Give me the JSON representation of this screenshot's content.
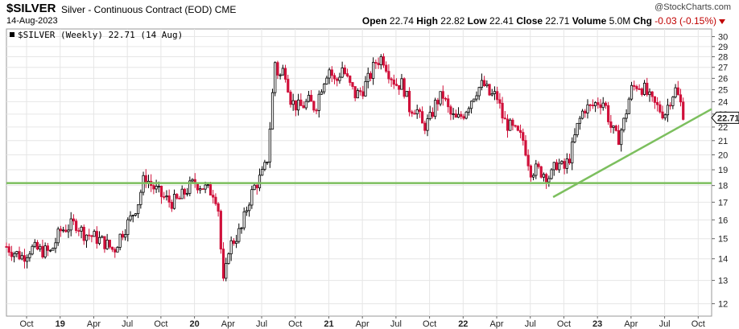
{
  "header": {
    "symbol": "$SILVER",
    "description": "Silver - Continuous Contract (EOD)",
    "exchange": "CME",
    "date": "14-Aug-2023",
    "credit": "@StockCharts.com"
  },
  "ohlc": {
    "open_label": "Open",
    "open": "22.74",
    "high_label": "High",
    "high": "22.82",
    "low_label": "Low",
    "low": "22.41",
    "close_label": "Close",
    "close": "22.71",
    "volume_label": "Volume",
    "volume": "5.0M",
    "chg_label": "Chg",
    "chg": "-0.03 (-0.15%)"
  },
  "legend": {
    "text": "$SILVER (Weekly) 22.71 (14 Aug)"
  },
  "colors": {
    "up": "#000000",
    "down": "#d0103a",
    "trendline": "#7cbf5e",
    "grid": "#e6e6e6"
  },
  "chart_data": {
    "type": "candlestick",
    "series_name": "$SILVER (Weekly)",
    "yscale": "log",
    "ylim": [
      11.5,
      30.8
    ],
    "y_ticks": [
      12,
      13,
      14,
      15,
      16,
      17,
      18,
      19,
      20,
      21,
      22,
      23,
      24,
      25,
      26,
      27,
      28,
      29,
      30
    ],
    "x_ticks": [
      {
        "label": "Oct",
        "t": 2018.75,
        "bold": false
      },
      {
        "label": "19",
        "t": 2019.0,
        "bold": true
      },
      {
        "label": "Apr",
        "t": 2019.25,
        "bold": false
      },
      {
        "label": "Jul",
        "t": 2019.5,
        "bold": false
      },
      {
        "label": "Oct",
        "t": 2019.75,
        "bold": false
      },
      {
        "label": "20",
        "t": 2020.0,
        "bold": true
      },
      {
        "label": "Apr",
        "t": 2020.25,
        "bold": false
      },
      {
        "label": "Jul",
        "t": 2020.5,
        "bold": false
      },
      {
        "label": "Oct",
        "t": 2020.75,
        "bold": false
      },
      {
        "label": "21",
        "t": 2021.0,
        "bold": true
      },
      {
        "label": "Apr",
        "t": 2021.25,
        "bold": false
      },
      {
        "label": "Jul",
        "t": 2021.5,
        "bold": false
      },
      {
        "label": "Oct",
        "t": 2021.75,
        "bold": false
      },
      {
        "label": "22",
        "t": 2022.0,
        "bold": true
      },
      {
        "label": "Apr",
        "t": 2022.25,
        "bold": false
      },
      {
        "label": "Jul",
        "t": 2022.5,
        "bold": false
      },
      {
        "label": "Oct",
        "t": 2022.75,
        "bold": false
      },
      {
        "label": "23",
        "t": 2023.0,
        "bold": true
      },
      {
        "label": "Apr",
        "t": 2023.25,
        "bold": false
      },
      {
        "label": "Jul",
        "t": 2023.5,
        "bold": false
      },
      {
        "label": "Oct",
        "t": 2023.75,
        "bold": false
      }
    ],
    "xlim": [
      2018.6,
      2023.85
    ],
    "last_price_label": "22.71",
    "horizontal_support": 18.15,
    "trendline": {
      "start": [
        2022.67,
        17.3
      ],
      "end": [
        2023.85,
        23.4
      ]
    },
    "price_path": [
      [
        2018.6,
        14.6
      ],
      [
        2018.66,
        14.3
      ],
      [
        2018.72,
        14.1
      ],
      [
        2018.78,
        14.5
      ],
      [
        2018.86,
        14.4
      ],
      [
        2018.93,
        14.3
      ],
      [
        2019.0,
        15.4
      ],
      [
        2019.05,
        15.6
      ],
      [
        2019.12,
        15.8
      ],
      [
        2019.17,
        15.3
      ],
      [
        2019.25,
        15.1
      ],
      [
        2019.33,
        14.8
      ],
      [
        2019.4,
        14.4
      ],
      [
        2019.45,
        15.2
      ],
      [
        2019.52,
        16.0
      ],
      [
        2019.58,
        17.0
      ],
      [
        2019.63,
        18.6
      ],
      [
        2019.68,
        18.0
      ],
      [
        2019.75,
        17.4
      ],
      [
        2019.82,
        17.0
      ],
      [
        2019.88,
        17.1
      ],
      [
        2019.95,
        17.8
      ],
      [
        2020.0,
        18.2
      ],
      [
        2020.05,
        18.0
      ],
      [
        2020.1,
        17.7
      ],
      [
        2020.15,
        17.6
      ],
      [
        2020.18,
        16.5
      ],
      [
        2020.2,
        14.0
      ],
      [
        2020.22,
        12.5
      ],
      [
        2020.25,
        14.5
      ],
      [
        2020.3,
        15.0
      ],
      [
        2020.35,
        15.5
      ],
      [
        2020.4,
        17.0
      ],
      [
        2020.45,
        18.0
      ],
      [
        2020.5,
        18.6
      ],
      [
        2020.54,
        19.5
      ],
      [
        2020.57,
        23.0
      ],
      [
        2020.6,
        27.5
      ],
      [
        2020.63,
        26.0
      ],
      [
        2020.67,
        27.0
      ],
      [
        2020.72,
        24.0
      ],
      [
        2020.78,
        23.5
      ],
      [
        2020.85,
        24.0
      ],
      [
        2020.9,
        23.5
      ],
      [
        2020.95,
        25.5
      ],
      [
        2021.0,
        27.0
      ],
      [
        2021.05,
        25.5
      ],
      [
        2021.1,
        27.0
      ],
      [
        2021.15,
        25.5
      ],
      [
        2021.2,
        24.5
      ],
      [
        2021.25,
        25.0
      ],
      [
        2021.3,
        26.0
      ],
      [
        2021.35,
        27.5
      ],
      [
        2021.4,
        28.0
      ],
      [
        2021.45,
        26.5
      ],
      [
        2021.5,
        25.5
      ],
      [
        2021.55,
        25.5
      ],
      [
        2021.6,
        23.5
      ],
      [
        2021.65,
        23.5
      ],
      [
        2021.7,
        22.0
      ],
      [
        2021.75,
        22.5
      ],
      [
        2021.8,
        24.0
      ],
      [
        2021.85,
        24.5
      ],
      [
        2021.9,
        23.0
      ],
      [
        2021.95,
        22.5
      ],
      [
        2022.0,
        23.0
      ],
      [
        2022.05,
        24.0
      ],
      [
        2022.1,
        25.0
      ],
      [
        2022.15,
        25.5
      ],
      [
        2022.2,
        24.5
      ],
      [
        2022.25,
        24.5
      ],
      [
        2022.3,
        22.5
      ],
      [
        2022.35,
        22.0
      ],
      [
        2022.4,
        21.5
      ],
      [
        2022.45,
        21.0
      ],
      [
        2022.5,
        19.0
      ],
      [
        2022.55,
        19.0
      ],
      [
        2022.6,
        18.8
      ],
      [
        2022.65,
        18.5
      ],
      [
        2022.7,
        19.5
      ],
      [
        2022.75,
        19.0
      ],
      [
        2022.8,
        20.0
      ],
      [
        2022.85,
        22.0
      ],
      [
        2022.9,
        23.5
      ],
      [
        2022.95,
        23.5
      ],
      [
        2023.0,
        24.0
      ],
      [
        2023.05,
        24.0
      ],
      [
        2023.1,
        22.0
      ],
      [
        2023.15,
        21.0
      ],
      [
        2023.2,
        22.5
      ],
      [
        2023.25,
        25.0
      ],
      [
        2023.3,
        25.5
      ],
      [
        2023.35,
        25.0
      ],
      [
        2023.4,
        24.0
      ],
      [
        2023.45,
        23.5
      ],
      [
        2023.5,
        23.0
      ],
      [
        2023.55,
        24.5
      ],
      [
        2023.58,
        25.0
      ],
      [
        2023.62,
        23.8
      ],
      [
        2023.65,
        22.71
      ]
    ]
  }
}
